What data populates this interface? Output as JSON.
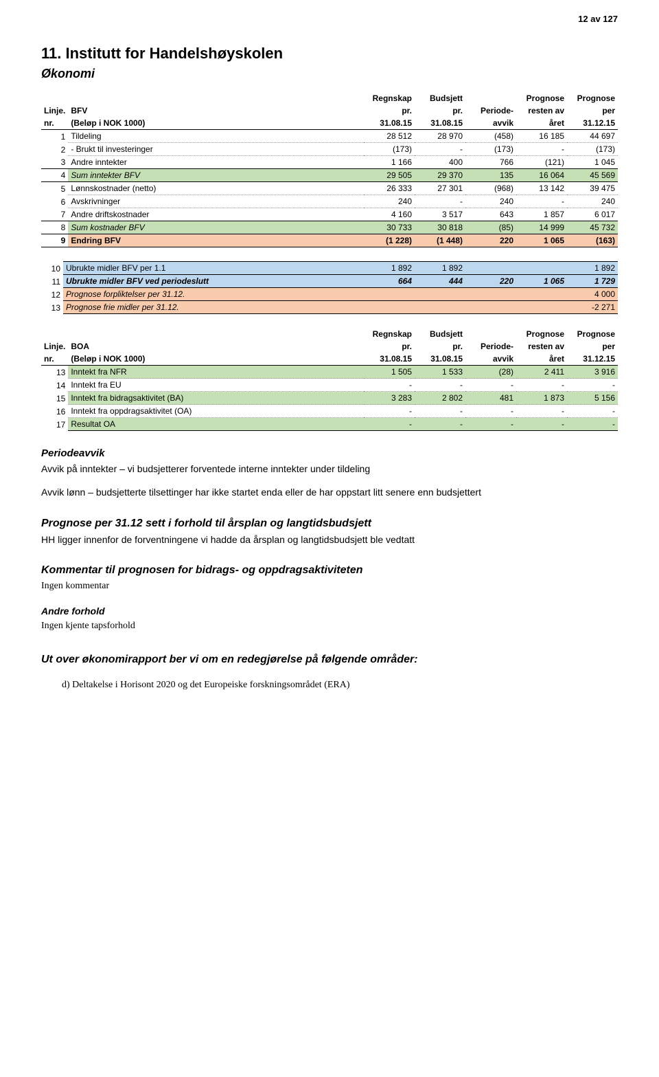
{
  "page_number": "12 av 127",
  "title": "11.   Institutt for Handelshøyskolen",
  "subtitle": "Økonomi",
  "colors": {
    "sum_bg": "#c5e0b4",
    "endring_bg": "#f8cbad",
    "midler_bg": "#bdd7ee",
    "prognose_bg": "#f8cbad",
    "dotted_border": "#999999"
  },
  "bfv": {
    "header": {
      "linje": "Linje.",
      "nr": "nr.",
      "name": "BFV",
      "unit": "(Beløp i NOK 1000)",
      "c1a": "Regnskap",
      "c1b": "pr.",
      "c1c": "31.08.15",
      "c2a": "Budsjett",
      "c2b": "pr.",
      "c2c": "31.08.15",
      "c3a": "",
      "c3b": "Periode-",
      "c3c": "avvik",
      "c4a": "Prognose",
      "c4b": "resten av",
      "c4c": "året",
      "c5a": "Prognose",
      "c5b": "per",
      "c5c": "31.12.15"
    },
    "rows": [
      {
        "nr": "1",
        "label": "Tildeling",
        "c1": "28 512",
        "c2": "28 970",
        "c3": "(458)",
        "c4": "16 185",
        "c5": "44 697"
      },
      {
        "nr": "2",
        "label": "- Brukt til investeringer",
        "c1": "(173)",
        "c2": "-",
        "c3": "(173)",
        "c4": "-",
        "c5": "(173)"
      },
      {
        "nr": "3",
        "label": "Andre inntekter",
        "c1": "1 166",
        "c2": "400",
        "c3": "766",
        "c4": "(121)",
        "c5": "1 045"
      },
      {
        "nr": "4",
        "label": "Sum inntekter BFV",
        "c1": "29 505",
        "c2": "29 370",
        "c3": "135",
        "c4": "16 064",
        "c5": "45 569",
        "sum": true
      },
      {
        "nr": "5",
        "label": "Lønnskostnader (netto)",
        "c1": "26 333",
        "c2": "27 301",
        "c3": "(968)",
        "c4": "13 142",
        "c5": "39 475"
      },
      {
        "nr": "6",
        "label": "Avskrivninger",
        "c1": "240",
        "c2": "-",
        "c3": "240",
        "c4": "-",
        "c5": "240"
      },
      {
        "nr": "7",
        "label": "Andre driftskostnader",
        "c1": "4 160",
        "c2": "3 517",
        "c3": "643",
        "c4": "1 857",
        "c5": "6 017"
      },
      {
        "nr": "8",
        "label": "Sum kostnader BFV",
        "c1": "30 733",
        "c2": "30 818",
        "c3": "(85)",
        "c4": "14 999",
        "c5": "45 732",
        "sum": true
      },
      {
        "nr": "9",
        "label": "Endring BFV",
        "c1": "(1 228)",
        "c2": "(1 448)",
        "c3": "220",
        "c4": "1 065",
        "c5": "(163)",
        "endring": true
      }
    ]
  },
  "midler": {
    "rows": [
      {
        "nr": "10",
        "label": "Ubrukte midler BFV per 1.1",
        "c1": "1 892",
        "c2": "1 892",
        "c3": "",
        "c4": "",
        "c5": "1 892",
        "type": "mid"
      },
      {
        "nr": "11",
        "label": "Ubrukte midler BFV ved periodeslutt",
        "c1": "664",
        "c2": "444",
        "c3": "220",
        "c4": "1 065",
        "c5": "1 729",
        "type": "midbold"
      },
      {
        "nr": "12",
        "label": "Prognose forpliktelser per 31.12.",
        "c1": "",
        "c2": "",
        "c3": "",
        "c4": "",
        "c5": "4 000",
        "type": "prog"
      },
      {
        "nr": "13",
        "label": "Prognose frie midler per 31.12.",
        "c1": "",
        "c2": "",
        "c3": "",
        "c4": "",
        "c5": "-2 271",
        "type": "prog"
      }
    ]
  },
  "boa": {
    "header": {
      "linje": "Linje.",
      "nr": "nr.",
      "name": "BOA",
      "unit": "(Beløp i NOK 1000)",
      "c1a": "Regnskap",
      "c1b": "pr.",
      "c1c": "31.08.15",
      "c2a": "Budsjett",
      "c2b": "pr.",
      "c2c": "31.08.15",
      "c3a": "",
      "c3b": "Periode-",
      "c3c": "avvik",
      "c4a": "Prognose",
      "c4b": "resten av",
      "c4c": "året",
      "c5a": "Prognose",
      "c5b": "per",
      "c5c": "31.12.15"
    },
    "rows": [
      {
        "nr": "13",
        "label": "Inntekt fra NFR",
        "c1": "1 505",
        "c2": "1 533",
        "c3": "(28)",
        "c4": "2 411",
        "c5": "3 916",
        "shade": true
      },
      {
        "nr": "14",
        "label": "Inntekt fra EU",
        "c1": "-",
        "c2": "-",
        "c3": "-",
        "c4": "-",
        "c5": "-"
      },
      {
        "nr": "15",
        "label": "Inntekt fra bidragsaktivitet (BA)",
        "c1": "3 283",
        "c2": "2 802",
        "c3": "481",
        "c4": "1 873",
        "c5": "5 156",
        "shade": true
      },
      {
        "nr": "16",
        "label": "Inntekt fra oppdragsaktivitet (OA)",
        "c1": "-",
        "c2": "-",
        "c3": "-",
        "c4": "-",
        "c5": "-"
      },
      {
        "nr": "17",
        "label": "Resultat OA",
        "c1": "-",
        "c2": "-",
        "c3": "-",
        "c4": "-",
        "c5": "-",
        "shade": true
      }
    ]
  },
  "text": {
    "periodeavvik_head": "Periodeavvik",
    "periodeavvik_p1": "Avvik på inntekter – vi budsjetterer forventede interne inntekter under tildeling",
    "periodeavvik_p2": "Avvik lønn – budsjetterte tilsettinger har ikke startet enda eller de har oppstart litt senere enn budsjettert",
    "prognose_head": "Prognose per 31.12 sett i forhold til årsplan og langtidsbudsjett",
    "prognose_p": "HH ligger innenfor de forventningene vi hadde da årsplan og langtidsbudsjett ble vedtatt",
    "kommentar_head": "Kommentar til prognosen for bidrags- og oppdragsaktiviteten",
    "kommentar_p": "Ingen kommentar",
    "andre_head": "Andre forhold",
    "andre_p": "Ingen kjente tapsforhold",
    "utover_head": "Ut over økonomirapport ber vi om en redegjørelse på følgende områder:",
    "list_d": "d)   Deltakelse i Horisont 2020 og det Europeiske forskningsområdet (ERA)"
  }
}
